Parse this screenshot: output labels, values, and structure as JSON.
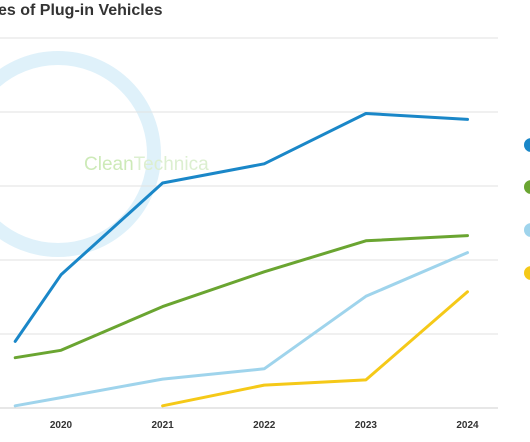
{
  "page_title": "es of Plug-in Vehicles",
  "watermark": {
    "text_a": "Clean",
    "text_b": "Technica",
    "color": "#8fd06b"
  },
  "chart_data": {
    "type": "line",
    "title": "es of Plug-in Vehicles",
    "xlabel": "",
    "ylabel": "",
    "x": [
      2019.55,
      2020,
      2021,
      2022,
      2023,
      2024
    ],
    "x_tick_labels": [
      "2020",
      "2021",
      "2022",
      "2023",
      "2024"
    ],
    "xlim": [
      2019.4,
      2024.3
    ],
    "ylim": [
      0,
      5
    ],
    "y_gridlines": [
      0,
      1,
      2,
      3,
      4,
      5
    ],
    "grid": true,
    "legend": "right",
    "series": [
      {
        "color": "#1a87c8",
        "values": [
          0.9,
          1.8,
          3.04,
          3.3,
          3.98,
          3.9
        ]
      },
      {
        "color": "#6aa531",
        "values": [
          0.68,
          0.78,
          1.37,
          1.84,
          2.26,
          2.33
        ]
      },
      {
        "color": "#9fd4ec",
        "values": [
          0.03,
          0.14,
          0.39,
          0.53,
          1.51,
          2.1
        ]
      },
      {
        "color": "#f5c918",
        "values": [
          null,
          null,
          0.03,
          0.31,
          0.38,
          1.57
        ]
      }
    ]
  }
}
